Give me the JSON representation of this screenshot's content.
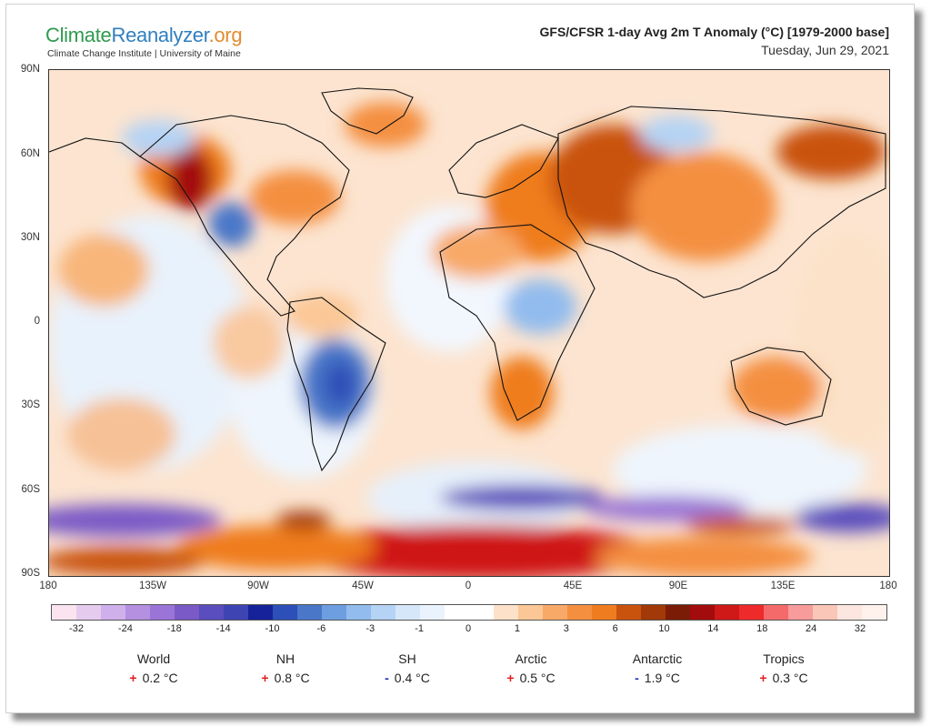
{
  "header": {
    "logo_part1": "Climate",
    "logo_part2": "Reanalyzer",
    "logo_part3": ".org",
    "sublogo": "Climate Change Institute | University of Maine",
    "title": "GFS/CFSR 1-day Avg 2m T Anomaly (°C) [1979-2000 base]",
    "date": "Tuesday, Jun 29, 2021"
  },
  "map": {
    "lat_labels": [
      "90N",
      "60N",
      "30N",
      "0",
      "30S",
      "60S",
      "90S"
    ],
    "lon_labels": [
      "180",
      "135W",
      "90W",
      "45W",
      "0",
      "45E",
      "90E",
      "135E",
      "180"
    ]
  },
  "colorbar": {
    "labels": [
      "-32",
      "-24",
      "-18",
      "-14",
      "-10",
      "-6",
      "-3",
      "-1",
      "0",
      "1",
      "3",
      "6",
      "10",
      "14",
      "18",
      "24",
      "32"
    ],
    "colors": [
      "#fbe4ef",
      "#e5ccee",
      "#cfb0ea",
      "#b58fe0",
      "#9a74d6",
      "#7a5ac6",
      "#5a4dbd",
      "#3f44b3",
      "#16229a",
      "#2d4fb8",
      "#4a77c8",
      "#6d9ee0",
      "#92bcee",
      "#b5d3f4",
      "#d6e7fa",
      "#eaf3fd",
      "#ffffff",
      "#ffffff",
      "#fde2c9",
      "#fbc796",
      "#f8a968",
      "#f48f3f",
      "#ef7d1f",
      "#c9520d",
      "#a13908",
      "#7b1d06",
      "#a30c0c",
      "#cf1818",
      "#ef2a2a",
      "#f46a6a",
      "#f79b9b",
      "#fac6b8",
      "#fde6df",
      "#fff1ec"
    ]
  },
  "stats": [
    {
      "name": "World",
      "sign": "+",
      "value": "0.2 °C"
    },
    {
      "name": "NH",
      "sign": "+",
      "value": "0.8 °C"
    },
    {
      "name": "SH",
      "sign": "-",
      "value": "0.4 °C"
    },
    {
      "name": "Arctic",
      "sign": "+",
      "value": "0.5 °C"
    },
    {
      "name": "Antarctic",
      "sign": "-",
      "value": "1.9 °C"
    },
    {
      "name": "Tropics",
      "sign": "+",
      "value": "0.3 °C"
    }
  ]
}
